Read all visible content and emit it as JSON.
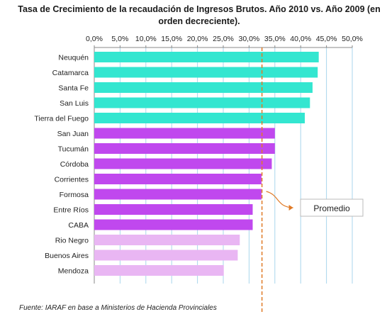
{
  "chart_data": {
    "type": "bar",
    "orientation": "horizontal",
    "title_lines": [
      "Tasa de Crecimiento de la recaudación de Ingresos Brutos. Año 2010 vs. Año 2009 (en",
      "orden decreciente)."
    ],
    "xlabel": "",
    "ylabel": "",
    "xlim": [
      0,
      50
    ],
    "x_ticks": [
      "0,0%",
      "5,0%",
      "10,0%",
      "15,0%",
      "20,0%",
      "25,0%",
      "30,0%",
      "35,0%",
      "40,0%",
      "45,0%",
      "50,0%"
    ],
    "x_tick_values": [
      0,
      5,
      10,
      15,
      20,
      25,
      30,
      35,
      40,
      45,
      50
    ],
    "grid": "vertical",
    "axis_position": "top",
    "categories": [
      "Neuquén",
      "Catamarca",
      "Santa Fe",
      "San Luis",
      "Tierra del Fuego",
      "San Juan",
      "Tucumán",
      "Córdoba",
      "Corrientes",
      "Formosa",
      "Entre Ríos",
      "CABA",
      "Rio Negro",
      "Buenos Aires",
      "Mendoza"
    ],
    "values": [
      43.5,
      43.3,
      42.3,
      41.8,
      40.8,
      35.0,
      35.0,
      34.4,
      32.4,
      32.4,
      30.7,
      30.7,
      28.2,
      27.8,
      25.1
    ],
    "bar_colors": [
      "#33e6d0",
      "#33e6d0",
      "#33e6d0",
      "#33e6d0",
      "#33e6d0",
      "#c048ee",
      "#c048ee",
      "#c048ee",
      "#c048ee",
      "#c048ee",
      "#c048ee",
      "#c048ee",
      "#e9b6f3",
      "#e9b6f3",
      "#e9b6f3"
    ],
    "reference_line": {
      "label": "Promedio",
      "value": 32.5,
      "color": "#e07a26"
    },
    "source": "Fuente: IARAF en base a Ministerios de Hacienda Provinciales"
  }
}
